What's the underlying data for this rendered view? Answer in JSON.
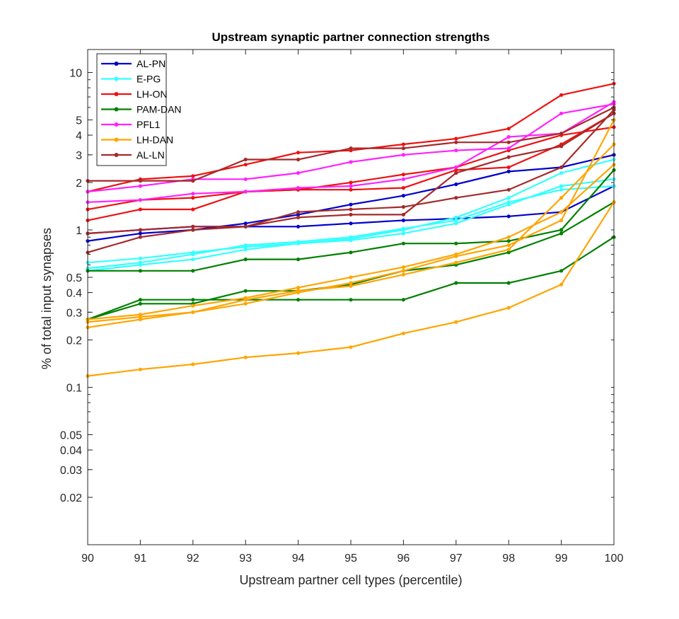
{
  "chart_data": {
    "type": "line",
    "title": "Upstream synaptic partner connection strengths",
    "xlabel": "Upstream partner cell types (percentile)",
    "ylabel": "% of total input synapses",
    "xlim": [
      90,
      100
    ],
    "ylim": [
      0.01,
      14
    ],
    "yscale": "log",
    "xticks": [
      "90",
      "91",
      "92",
      "93",
      "94",
      "95",
      "96",
      "97",
      "98",
      "99",
      "100"
    ],
    "yticks": [
      "0.02",
      "0.03",
      "0.04",
      "0.05",
      "0.1",
      "0.2",
      "0.3",
      "0.4",
      "0.5",
      "1",
      "2",
      "3",
      "4",
      "5",
      "10"
    ],
    "grid": false,
    "legend_position": "top-left",
    "colors": {
      "AL-PN": "#0000cd",
      "E-PG": "#33ffff",
      "LH-ON": "#ee1111",
      "PAM-DAN": "#008000",
      "PFL1": "#ff22ff",
      "LH-DAN": "#ffa500",
      "AL-LN": "#a52a2a"
    },
    "series": [
      {
        "name": "AL-PN",
        "lines": [
          {
            "x": [
              90,
              91,
              92,
              93,
              94,
              95,
              96,
              97,
              98,
              99,
              100
            ],
            "y": [
              0.95,
              1.0,
              1.05,
              1.05,
              1.05,
              1.1,
              1.15,
              1.18,
              1.22,
              1.3,
              1.9
            ]
          },
          {
            "x": [
              90,
              91,
              92,
              93,
              94,
              95,
              96,
              97,
              98,
              99,
              100
            ],
            "y": [
              0.85,
              0.95,
              1.0,
              1.1,
              1.25,
              1.45,
              1.65,
              1.95,
              2.35,
              2.5,
              3.0
            ]
          }
        ]
      },
      {
        "name": "E-PG",
        "lines": [
          {
            "x": [
              90,
              91,
              92,
              93,
              94,
              95,
              96,
              97,
              98,
              99,
              100
            ],
            "y": [
              0.62,
              0.66,
              0.72,
              0.78,
              0.82,
              0.86,
              0.95,
              1.1,
              1.45,
              1.9,
              2.1
            ]
          },
          {
            "x": [
              90,
              91,
              92,
              93,
              94,
              95,
              96,
              97,
              98,
              99,
              100
            ],
            "y": [
              0.55,
              0.6,
              0.65,
              0.75,
              0.82,
              0.88,
              1.0,
              1.2,
              1.6,
              2.3,
              2.8
            ]
          },
          {
            "x": [
              90,
              91,
              92,
              93,
              94,
              95,
              96,
              97,
              98,
              99,
              100
            ],
            "y": [
              0.57,
              0.62,
              0.7,
              0.8,
              0.84,
              0.9,
              1.02,
              1.15,
              1.5,
              1.8,
              1.9
            ]
          }
        ]
      },
      {
        "name": "LH-ON",
        "lines": [
          {
            "x": [
              90,
              91,
              92,
              93,
              94,
              95,
              96,
              97,
              98,
              99,
              100
            ],
            "y": [
              1.75,
              2.1,
              2.2,
              2.6,
              3.1,
              3.2,
              3.5,
              3.8,
              4.4,
              7.2,
              8.5
            ]
          },
          {
            "x": [
              90,
              91,
              92,
              93,
              94,
              95,
              96,
              97,
              98,
              99,
              100
            ],
            "y": [
              1.35,
              1.55,
              1.6,
              1.75,
              1.8,
              2.0,
              2.25,
              2.5,
              3.2,
              4.0,
              4.5
            ]
          },
          {
            "x": [
              90,
              91,
              92,
              93,
              94,
              95,
              96,
              97,
              98,
              99,
              100
            ],
            "y": [
              1.15,
              1.35,
              1.35,
              1.75,
              1.8,
              1.8,
              1.85,
              2.4,
              2.5,
              3.5,
              5.5
            ]
          }
        ]
      },
      {
        "name": "PAM-DAN",
        "lines": [
          {
            "x": [
              90,
              91,
              92,
              93,
              94,
              95,
              96,
              97,
              98,
              99,
              100
            ],
            "y": [
              0.55,
              0.55,
              0.55,
              0.65,
              0.65,
              0.72,
              0.82,
              0.82,
              0.85,
              1.0,
              2.4
            ]
          },
          {
            "x": [
              90,
              91,
              92,
              93,
              94,
              95,
              96,
              97,
              98,
              99,
              100
            ],
            "y": [
              0.27,
              0.36,
              0.36,
              0.36,
              0.36,
              0.36,
              0.36,
              0.46,
              0.46,
              0.55,
              0.9
            ]
          },
          {
            "x": [
              90,
              91,
              92,
              93,
              94,
              95,
              96,
              97,
              98,
              99,
              100
            ],
            "y": [
              0.27,
              0.34,
              0.34,
              0.41,
              0.41,
              0.45,
              0.55,
              0.6,
              0.72,
              0.95,
              1.5
            ]
          }
        ]
      },
      {
        "name": "PFL1",
        "lines": [
          {
            "x": [
              90,
              91,
              92,
              93,
              94,
              95,
              96,
              97,
              98,
              99,
              100
            ],
            "y": [
              1.75,
              1.9,
              2.1,
              2.1,
              2.3,
              2.7,
              3.0,
              3.2,
              3.3,
              5.5,
              6.3
            ]
          },
          {
            "x": [
              90,
              91,
              92,
              93,
              94,
              95,
              96,
              97,
              98,
              99,
              100
            ],
            "y": [
              1.5,
              1.55,
              1.7,
              1.75,
              1.85,
              1.9,
              2.1,
              2.5,
              3.9,
              4.1,
              6.5
            ]
          }
        ]
      },
      {
        "name": "LH-DAN",
        "lines": [
          {
            "x": [
              90,
              91,
              92,
              93,
              94,
              95,
              96,
              97,
              98,
              99,
              100
            ],
            "y": [
              0.118,
              0.13,
              0.14,
              0.155,
              0.165,
              0.18,
              0.22,
              0.26,
              0.32,
              0.45,
              1.5
            ]
          },
          {
            "x": [
              90,
              91,
              92,
              93,
              94,
              95,
              96,
              97,
              98,
              99,
              100
            ],
            "y": [
              0.24,
              0.27,
              0.3,
              0.34,
              0.4,
              0.46,
              0.55,
              0.68,
              0.8,
              1.15,
              5.0
            ]
          },
          {
            "x": [
              90,
              91,
              92,
              93,
              94,
              95,
              96,
              97,
              98,
              99,
              100
            ],
            "y": [
              0.26,
              0.28,
              0.3,
              0.36,
              0.41,
              0.44,
              0.52,
              0.62,
              0.75,
              1.6,
              3.5
            ]
          },
          {
            "x": [
              90,
              91,
              92,
              93,
              94,
              95,
              96,
              97,
              98,
              99,
              100
            ],
            "y": [
              0.27,
              0.29,
              0.33,
              0.37,
              0.43,
              0.5,
              0.58,
              0.7,
              0.9,
              1.3,
              2.6
            ]
          }
        ]
      },
      {
        "name": "AL-LN",
        "lines": [
          {
            "x": [
              90,
              91,
              92,
              93,
              94,
              95,
              96,
              97,
              98,
              99,
              100
            ],
            "y": [
              2.05,
              2.05,
              2.05,
              2.8,
              2.8,
              3.3,
              3.3,
              3.6,
              3.6,
              4.1,
              6.0
            ]
          },
          {
            "x": [
              90,
              91,
              92,
              93,
              94,
              95,
              96,
              97,
              98,
              99,
              100
            ],
            "y": [
              0.72,
              0.9,
              1.0,
              1.05,
              1.3,
              1.35,
              1.4,
              1.6,
              1.8,
              2.5,
              5.8
            ]
          },
          {
            "x": [
              90,
              91,
              92,
              93,
              94,
              95,
              96,
              97,
              98,
              99,
              100
            ],
            "y": [
              0.95,
              1.0,
              1.05,
              1.05,
              1.2,
              1.25,
              1.25,
              2.3,
              2.9,
              3.4,
              5.5
            ]
          }
        ]
      }
    ]
  }
}
